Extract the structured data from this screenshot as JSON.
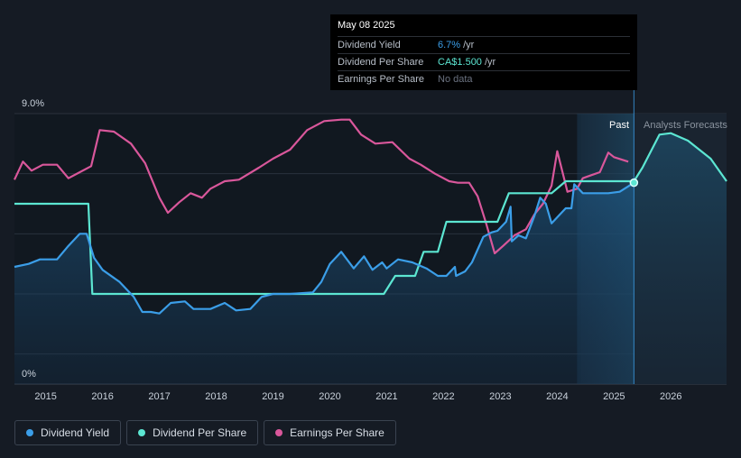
{
  "tooltip": {
    "date": "May 08 2025",
    "rows": [
      {
        "label": "Dividend Yield",
        "value": "6.7%",
        "unit": "/yr",
        "color": "#3b9ee8"
      },
      {
        "label": "Dividend Per Share",
        "value": "CA$1.500",
        "unit": "/yr",
        "color": "#5ce6d2"
      },
      {
        "label": "Earnings Per Share",
        "value": "No data",
        "unit": "",
        "color": "#6b7280"
      }
    ]
  },
  "legend": [
    {
      "label": "Dividend Yield",
      "color": "#3b9ee8"
    },
    {
      "label": "Dividend Per Share",
      "color": "#5ce6d2"
    },
    {
      "label": "Earnings Per Share",
      "color": "#d9579b"
    }
  ],
  "region_labels": {
    "past": "Past",
    "forecast": "Analysts Forecasts"
  },
  "chart_data": {
    "type": "line",
    "ylim": [
      0,
      9
    ],
    "y_tick_labels": [
      "0%",
      "9.0%"
    ],
    "x_ticks": [
      "2015",
      "2016",
      "2017",
      "2018",
      "2019",
      "2020",
      "2021",
      "2022",
      "2023",
      "2024",
      "2025",
      "2026"
    ],
    "xlim": [
      2014.45,
      2026.98
    ],
    "forecast_start": 2025.35,
    "forecast_shade_start": 2024.35,
    "series": [
      {
        "name": "Dividend Yield",
        "color": "#3b9ee8",
        "points": [
          [
            2014.45,
            3.9
          ],
          [
            2014.7,
            4.0
          ],
          [
            2014.9,
            4.15
          ],
          [
            2015.2,
            4.15
          ],
          [
            2015.4,
            4.6
          ],
          [
            2015.6,
            5.0
          ],
          [
            2015.72,
            5.0
          ],
          [
            2015.85,
            4.2
          ],
          [
            2016.0,
            3.8
          ],
          [
            2016.3,
            3.4
          ],
          [
            2016.55,
            2.9
          ],
          [
            2016.7,
            2.4
          ],
          [
            2016.85,
            2.4
          ],
          [
            2017.0,
            2.35
          ],
          [
            2017.2,
            2.7
          ],
          [
            2017.45,
            2.75
          ],
          [
            2017.6,
            2.5
          ],
          [
            2017.9,
            2.5
          ],
          [
            2018.15,
            2.7
          ],
          [
            2018.35,
            2.45
          ],
          [
            2018.6,
            2.5
          ],
          [
            2018.8,
            2.9
          ],
          [
            2019.0,
            3.0
          ],
          [
            2019.3,
            3.0
          ],
          [
            2019.7,
            3.05
          ],
          [
            2019.85,
            3.4
          ],
          [
            2020.0,
            4.0
          ],
          [
            2020.2,
            4.4
          ],
          [
            2020.42,
            3.85
          ],
          [
            2020.6,
            4.25
          ],
          [
            2020.75,
            3.8
          ],
          [
            2020.92,
            4.05
          ],
          [
            2021.0,
            3.85
          ],
          [
            2021.2,
            4.15
          ],
          [
            2021.45,
            4.05
          ],
          [
            2021.7,
            3.85
          ],
          [
            2021.9,
            3.6
          ],
          [
            2022.05,
            3.6
          ],
          [
            2022.2,
            3.9
          ],
          [
            2022.22,
            3.6
          ],
          [
            2022.38,
            3.75
          ],
          [
            2022.5,
            4.05
          ],
          [
            2022.7,
            4.9
          ],
          [
            2022.85,
            5.05
          ],
          [
            2022.95,
            5.1
          ],
          [
            2023.1,
            5.4
          ],
          [
            2023.18,
            5.9
          ],
          [
            2023.2,
            4.75
          ],
          [
            2023.32,
            4.95
          ],
          [
            2023.45,
            4.85
          ],
          [
            2023.6,
            5.6
          ],
          [
            2023.7,
            6.2
          ],
          [
            2023.8,
            6.0
          ],
          [
            2023.9,
            5.35
          ],
          [
            2024.0,
            5.55
          ],
          [
            2024.15,
            5.85
          ],
          [
            2024.25,
            5.85
          ],
          [
            2024.3,
            6.65
          ],
          [
            2024.45,
            6.35
          ],
          [
            2024.65,
            6.35
          ],
          [
            2024.9,
            6.35
          ],
          [
            2025.1,
            6.4
          ],
          [
            2025.35,
            6.7
          ]
        ]
      },
      {
        "name": "Dividend Per Share",
        "color": "#5ce6d2",
        "points": [
          [
            2014.45,
            6.0
          ],
          [
            2015.75,
            6.0
          ],
          [
            2015.82,
            3.0
          ],
          [
            2020.95,
            3.0
          ],
          [
            2021.15,
            3.6
          ],
          [
            2021.5,
            3.6
          ],
          [
            2021.65,
            4.4
          ],
          [
            2021.9,
            4.4
          ],
          [
            2022.05,
            5.4
          ],
          [
            2022.95,
            5.4
          ],
          [
            2023.15,
            6.35
          ],
          [
            2023.9,
            6.35
          ],
          [
            2024.15,
            6.75
          ],
          [
            2025.35,
            6.75
          ],
          [
            2025.5,
            7.2
          ],
          [
            2025.8,
            8.3
          ],
          [
            2026.0,
            8.35
          ],
          [
            2026.3,
            8.1
          ],
          [
            2026.7,
            7.5
          ],
          [
            2026.98,
            6.75
          ]
        ]
      },
      {
        "name": "Earnings Per Share",
        "color": "#d9579b",
        "points": [
          [
            2014.45,
            6.8
          ],
          [
            2014.6,
            7.4
          ],
          [
            2014.75,
            7.1
          ],
          [
            2014.95,
            7.3
          ],
          [
            2015.2,
            7.3
          ],
          [
            2015.4,
            6.85
          ],
          [
            2015.6,
            7.05
          ],
          [
            2015.8,
            7.25
          ],
          [
            2015.95,
            8.45
          ],
          [
            2016.2,
            8.4
          ],
          [
            2016.5,
            8.0
          ],
          [
            2016.75,
            7.35
          ],
          [
            2017.0,
            6.2
          ],
          [
            2017.15,
            5.7
          ],
          [
            2017.35,
            6.05
          ],
          [
            2017.55,
            6.35
          ],
          [
            2017.75,
            6.2
          ],
          [
            2017.9,
            6.5
          ],
          [
            2018.15,
            6.75
          ],
          [
            2018.4,
            6.8
          ],
          [
            2018.75,
            7.2
          ],
          [
            2019.0,
            7.5
          ],
          [
            2019.3,
            7.8
          ],
          [
            2019.6,
            8.45
          ],
          [
            2019.9,
            8.75
          ],
          [
            2020.2,
            8.8
          ],
          [
            2020.35,
            8.8
          ],
          [
            2020.55,
            8.3
          ],
          [
            2020.8,
            8.0
          ],
          [
            2021.1,
            8.05
          ],
          [
            2021.4,
            7.5
          ],
          [
            2021.6,
            7.3
          ],
          [
            2021.85,
            7.0
          ],
          [
            2022.1,
            6.75
          ],
          [
            2022.25,
            6.7
          ],
          [
            2022.45,
            6.7
          ],
          [
            2022.6,
            6.25
          ],
          [
            2022.75,
            5.35
          ],
          [
            2022.9,
            4.35
          ],
          [
            2023.05,
            4.6
          ],
          [
            2023.25,
            4.95
          ],
          [
            2023.45,
            5.15
          ],
          [
            2023.6,
            5.65
          ],
          [
            2023.75,
            6.0
          ],
          [
            2023.9,
            6.6
          ],
          [
            2024.0,
            7.75
          ],
          [
            2024.18,
            6.4
          ],
          [
            2024.35,
            6.5
          ],
          [
            2024.45,
            6.85
          ],
          [
            2024.6,
            6.95
          ],
          [
            2024.75,
            7.05
          ],
          [
            2024.9,
            7.7
          ],
          [
            2025.0,
            7.55
          ],
          [
            2025.25,
            7.4
          ]
        ]
      }
    ]
  }
}
